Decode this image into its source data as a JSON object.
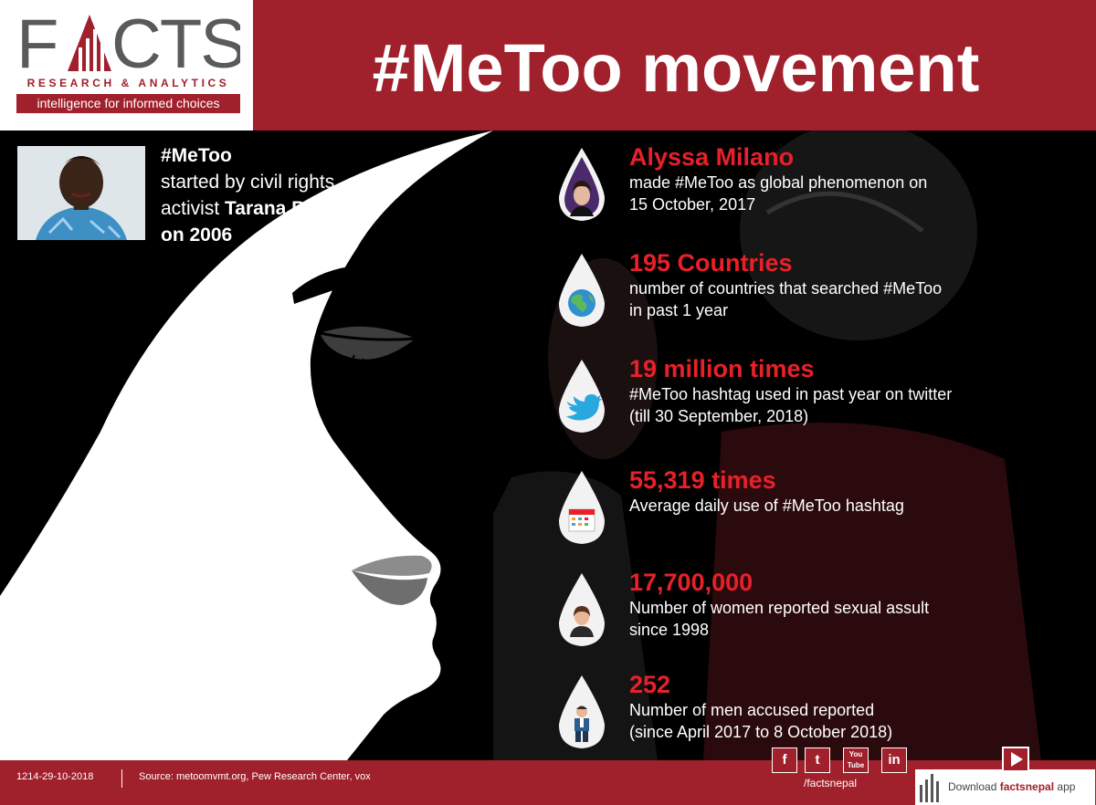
{
  "brand": {
    "logo_text": "FACTS",
    "subtitle": "RESEARCH & ANALYTICS",
    "tagline": "intelligence for informed choices",
    "accent_color": "#a0202b",
    "highlight_color": "#e8202a"
  },
  "title": "#MeToo movement",
  "origin": {
    "hashtag": "#MeToo",
    "line1": "started by civil rights",
    "line2_prefix": "activist ",
    "name": "Tarana Burke",
    "year": "on 2006",
    "photo": "portrait-of-tarana-burke"
  },
  "stats": [
    {
      "title": "Alyssa Milano",
      "desc1": "made #MeToo as global phenomenon on",
      "desc2": "15 October, 2017",
      "icon": "alyssa-milano-portrait-icon"
    },
    {
      "title": "195 Countries",
      "desc1": "number of countries that searched #MeToo",
      "desc2": "in past 1 year",
      "icon": "globe-icon"
    },
    {
      "title": "19 million times",
      "desc1": "#MeToo hashtag  used in  past year on twitter",
      "desc2": "(till 30 September, 2018)",
      "icon": "twitter-bird-icon"
    },
    {
      "title": "55,319 times",
      "desc1": "Average daily use of #MeToo hashtag",
      "desc2": "",
      "icon": "calendar-icon"
    },
    {
      "title": "17,700,000",
      "desc1": "Number of women reported sexual assult",
      "desc2": "since 1998",
      "icon": "woman-icon"
    },
    {
      "title": "252",
      "desc1": "Number of men accused reported",
      "desc2": "(since April 2017 to 8 October 2018)",
      "icon": "man-icon"
    }
  ],
  "footer": {
    "id": "1214-29-10-2018",
    "source": "Source: metoomvmt.org, Pew Research Center, vox",
    "social_handle": "/factsnepal",
    "social": [
      "f",
      "t",
      "You Tube",
      "in"
    ],
    "app_prefix": "Download ",
    "app_name": "factsnepal",
    "app_suffix": " app"
  }
}
